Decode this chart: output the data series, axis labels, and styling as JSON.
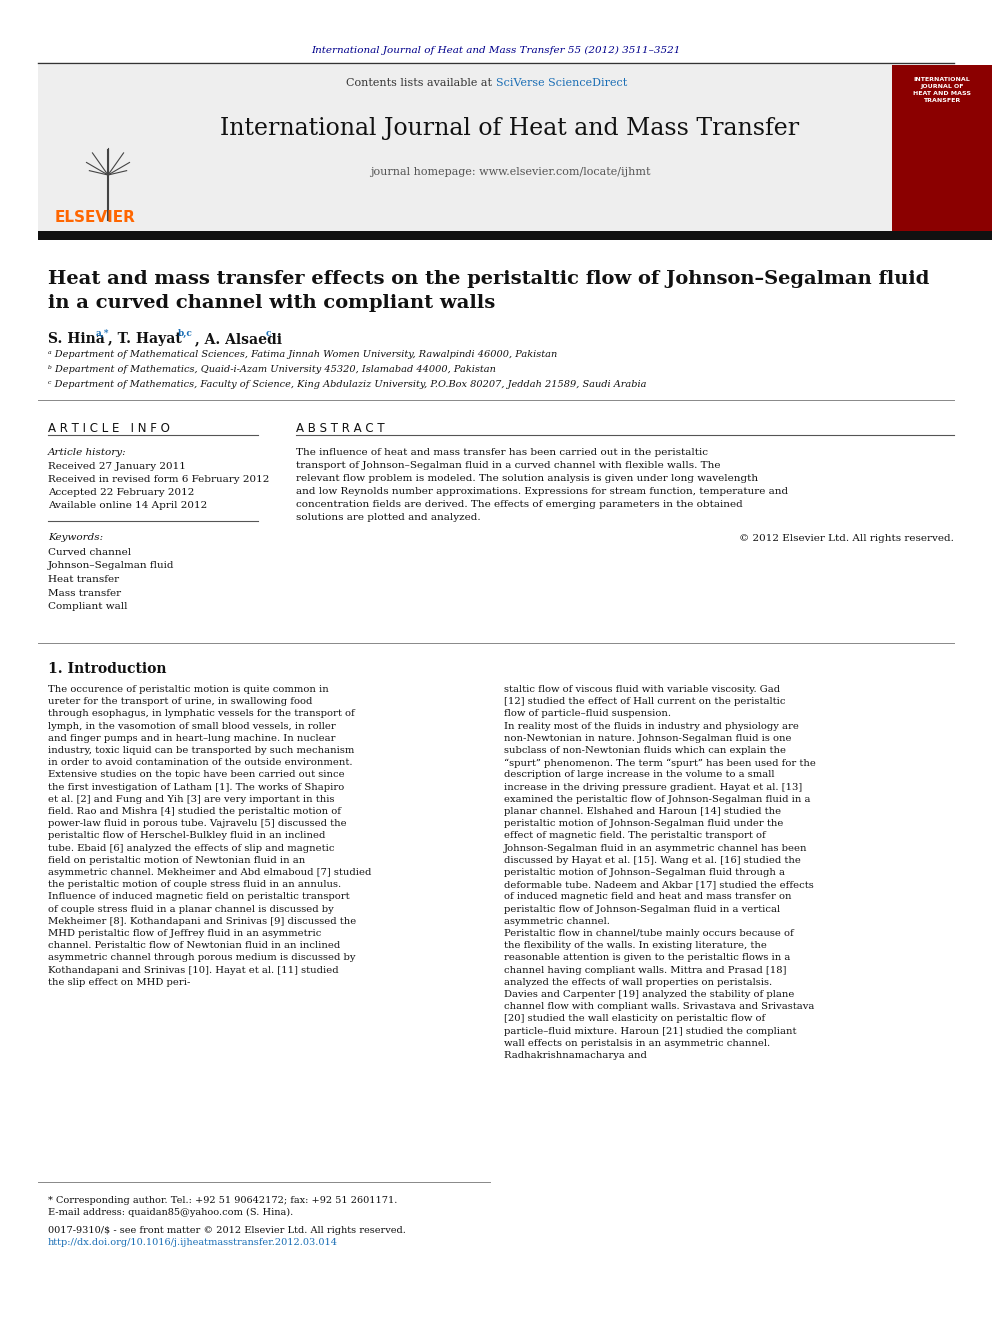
{
  "journal_ref": "International Journal of Heat and Mass Transfer 55 (2012) 3511–3521",
  "journal_ref_color": "#00008B",
  "contents_line": "Contents lists available at ",
  "sciverse_text": "SciVerse ScienceDirect",
  "sciverse_color": "#1a6eb5",
  "journal_title": "International Journal of Heat and Mass Transfer",
  "journal_homepage_label": "journal homepage: www.elsevier.com/locate/ijhmt",
  "elsevier_color": "#FF6600",
  "paper_title": "Heat and mass transfer effects on the peristaltic flow of Johnson–Segalman fluid\nin a curved channel with compliant walls",
  "authors": "S. Hina",
  "authors_superscript_1": "a,*",
  "author2": ", T. Hayat",
  "author2_sup": "b,c",
  "author3": ", A. Alsaedi",
  "author3_sup": "c",
  "affil_a": "ᵃ Department of Mathematical Sciences, Fatima Jinnah Women University, Rawalpindi 46000, Pakistan",
  "affil_b": "ᵇ Department of Mathematics, Quaid-i-Azam University 45320, Islamabad 44000, Pakistan",
  "affil_c": "ᶜ Department of Mathematics, Faculty of Science, King Abdulaziz University, P.O.Box 80207, Jeddah 21589, Saudi Arabia",
  "article_info_header": "A R T I C L E   I N F O",
  "abstract_header": "A B S T R A C T",
  "article_history_label": "Article history:",
  "received": "Received 27 January 2011",
  "received_revised": "Received in revised form 6 February 2012",
  "accepted": "Accepted 22 February 2012",
  "available": "Available online 14 April 2012",
  "keywords_label": "Keywords:",
  "keyword1": "Curved channel",
  "keyword2": "Johnson–Segalman fluid",
  "keyword3": "Heat transfer",
  "keyword4": "Mass transfer",
  "keyword5": "Compliant wall",
  "abstract_text": "The influence of heat and mass transfer has been carried out in the peristaltic transport of Johnson–Segalman fluid in a curved channel with flexible walls. The relevant flow problem is modeled. The solution analysis is given under long wavelength and low Reynolds number approximations. Expressions for stream function, temperature and concentration fields are derived. The effects of emerging parameters in the obtained solutions are plotted and analyzed.",
  "copyright": "© 2012 Elsevier Ltd. All rights reserved.",
  "intro_header": "1. Introduction",
  "intro_col1": "The occurence of peristaltic motion is quite common in ureter for the transport of urine, in swallowing food through esophagus, in lymphatic vessels for the transport of lymph, in the vasomotion of small blood vessels, in roller and finger pumps and in heart–lung machine. In nuclear industry, toxic liquid can be transported by such mechanism in order to avoid contamination of the outside environment. Extensive studies on the topic have been carried out since the first investigation of Latham [1]. The works of Shapiro et al. [2] and Fung and Yih [3] are very important in this field. Rao and Mishra [4] studied the peristaltic motion of power-law fluid in porous tube. Vajravelu [5] discussed the peristaltic flow of Herschel-Bulkley fluid in an inclined tube. Ebaid [6] analyzed the effects of slip and magnetic field on peristaltic motion of Newtonian fluid in an asymmetric channel. Mekheimer and Abd elmaboud [7] studied the peristaltic motion of couple stress fluid in an annulus. Influence of induced magnetic field on peristaltic transport of couple stress fluid in a planar channel is discussed by Mekheimer [8]. Kothandapani and Srinivas [9] discussed the MHD peristaltic flow of Jeffrey fluid in an asymmetric channel. Peristaltic flow of Newtonian fluid in an inclined asymmetric channel through porous medium is discussed by Kothandapani and Srinivas [10]. Hayat et al. [11] studied the slip effect on MHD peri-",
  "intro_col2": "staltic flow of viscous fluid with variable viscosity. Gad [12] studied the effect of Hall current on the peristaltic flow of particle–fluid suspension.\n    In reality most of the fluids in industry and physiology are non-Newtonian in nature. Johnson-Segalman fluid is one subclass of non-Newtonian fluids which can explain the “spurt” phenomenon. The term “spurt” has been used for the description of large increase in the volume to a small increase in the driving pressure gradient. Hayat et al. [13] examined the peristaltic flow of Johnson-Segalman fluid in a planar channel. Elshahed and Haroun [14] studied the peristaltic motion of Johnson-Segalman fluid under the effect of magnetic field. The peristaltic transport of Johnson-Segalman fluid in an asymmetric channel has been discussed by Hayat et al. [15]. Wang et al. [16] studied the peristaltic motion of Johnson–Segalman fluid through a deformable tube. Nadeem and Akbar [17] studied the effects of induced magnetic field and heat and mass transfer on peristaltic flow of Johnson-Segalman fluid in a vertical asymmetric channel.\n    Peristaltic flow in channel/tube mainly occurs because of the flexibility of the walls. In existing literature, the reasonable attention is given to the peristaltic flows in a channel having compliant walls. Mittra and Prasad [18] analyzed the effects of wall properties on peristalsis. Davies and Carpenter [19] analyzed the stability of plane channel flow with compliant walls. Srivastava and Srivastava [20] studied the wall elasticity on peristaltic flow of particle–fluid mixture. Haroun [21] studied the compliant wall effects on peristalsis in an asymmetric channel. Radhakrishnamacharya and",
  "footnote_star": "* Corresponding author. Tel.: +92 51 90642172; fax: +92 51 2601171.",
  "footnote_email": "E-mail address: quaidan85@yahoo.com (S. Hina).",
  "footnote_issn": "0017-9310/$ - see front matter © 2012 Elsevier Ltd. All rights reserved.",
  "footnote_doi": "http://dx.doi.org/10.1016/j.ijheatmasstransfer.2012.03.014",
  "footnote_doi_color": "#1a6eb5",
  "bg_color": "#FFFFFF",
  "thick_bar_color": "#111111"
}
